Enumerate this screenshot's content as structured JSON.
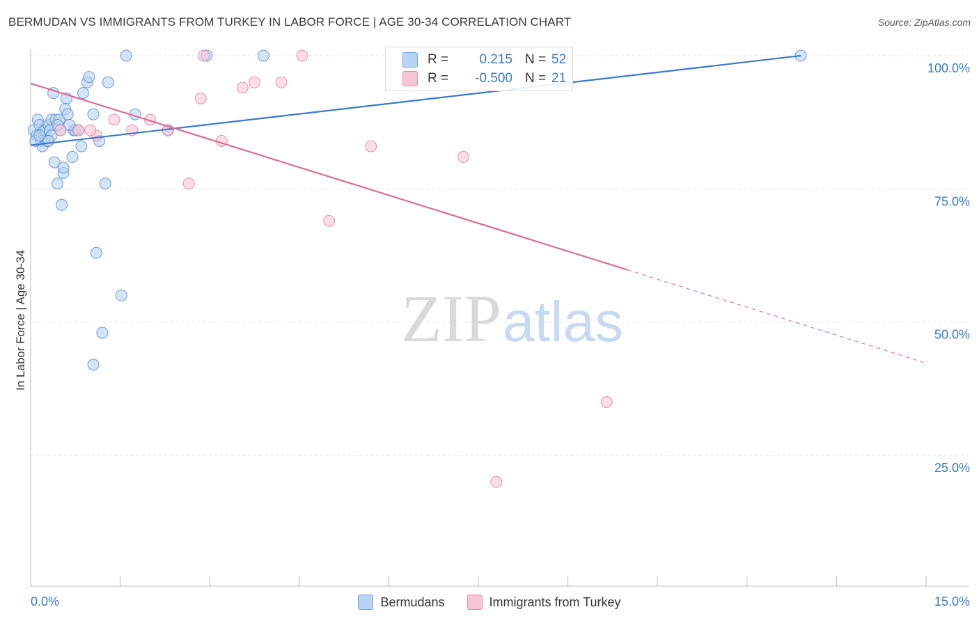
{
  "header": {
    "title": "BERMUDAN VS IMMIGRANTS FROM TURKEY IN LABOR FORCE | AGE 30-34 CORRELATION CHART",
    "source": "Source: ZipAtlas.com"
  },
  "watermark": {
    "zip": "ZIP",
    "atlas": "atlas"
  },
  "legend": {
    "r_label": "R =",
    "n_label": "N =",
    "rows": [
      {
        "r": "0.215",
        "n": "52",
        "color": "#6fa3e0",
        "fill": "#b8d3f3"
      },
      {
        "r": "-0.500",
        "n": "21",
        "color": "#e98aaa",
        "fill": "#f7c6d5"
      }
    ]
  },
  "chart_data": {
    "type": "scatter",
    "title": "BERMUDAN VS IMMIGRANTS FROM TURKEY IN LABOR FORCE | AGE 30-34 CORRELATION CHART",
    "xlabel": "",
    "ylabel": "In Labor Force | Age 30-34",
    "xlim": [
      0,
      15
    ],
    "ylim": [
      0,
      105
    ],
    "x_tick_labels": [
      "0.0%",
      "15.0%"
    ],
    "y_tick_labels": [
      "100.0%",
      "75.0%",
      "50.0%",
      "25.0%"
    ],
    "y_ticks": [
      100,
      75,
      50,
      25
    ],
    "series": [
      {
        "name": "Bermudans",
        "color": "#3a78c9",
        "fill": "#b8d3f3",
        "points": [
          [
            0.05,
            86
          ],
          [
            0.1,
            85
          ],
          [
            0.12,
            88
          ],
          [
            0.15,
            87
          ],
          [
            0.18,
            84
          ],
          [
            0.2,
            83
          ],
          [
            0.22,
            86
          ],
          [
            0.25,
            86
          ],
          [
            0.28,
            84
          ],
          [
            0.3,
            87
          ],
          [
            0.32,
            86
          ],
          [
            0.35,
            85
          ],
          [
            0.35,
            88
          ],
          [
            0.38,
            93
          ],
          [
            0.4,
            80
          ],
          [
            0.42,
            88
          ],
          [
            0.45,
            76
          ],
          [
            0.48,
            88
          ],
          [
            0.5,
            86
          ],
          [
            0.52,
            72
          ],
          [
            0.55,
            78
          ],
          [
            0.55,
            79
          ],
          [
            0.58,
            90
          ],
          [
            0.6,
            92
          ],
          [
            0.62,
            89
          ],
          [
            0.7,
            81
          ],
          [
            0.72,
            86
          ],
          [
            0.75,
            86
          ],
          [
            0.8,
            86
          ],
          [
            0.85,
            83
          ],
          [
            0.88,
            93
          ],
          [
            0.95,
            95
          ],
          [
            0.98,
            96
          ],
          [
            1.05,
            89
          ],
          [
            1.1,
            63
          ],
          [
            1.15,
            84
          ],
          [
            1.2,
            48
          ],
          [
            1.25,
            76
          ],
          [
            1.3,
            95
          ],
          [
            1.05,
            42
          ],
          [
            1.52,
            55
          ],
          [
            1.6,
            100
          ],
          [
            1.75,
            89
          ],
          [
            2.3,
            86
          ],
          [
            2.95,
            100
          ],
          [
            3.9,
            100
          ],
          [
            12.9,
            100
          ],
          [
            0.08,
            84
          ],
          [
            0.15,
            85
          ],
          [
            0.3,
            84
          ],
          [
            0.45,
            87
          ],
          [
            0.65,
            87
          ]
        ]
      },
      {
        "name": "Immigrants from Turkey",
        "color": "#e06a95",
        "fill": "#f7c6d5",
        "points": [
          [
            0.8,
            86
          ],
          [
            1.1,
            85
          ],
          [
            1.4,
            88
          ],
          [
            1.7,
            86
          ],
          [
            2.0,
            88
          ],
          [
            2.3,
            86
          ],
          [
            2.65,
            76
          ],
          [
            2.85,
            92
          ],
          [
            3.2,
            84
          ],
          [
            3.55,
            94
          ],
          [
            3.75,
            95
          ],
          [
            4.2,
            95
          ],
          [
            4.55,
            100
          ],
          [
            5.0,
            69
          ],
          [
            5.7,
            83
          ],
          [
            7.25,
            81
          ],
          [
            7.8,
            20
          ],
          [
            9.65,
            35
          ],
          [
            0.5,
            86
          ],
          [
            1.0,
            86
          ],
          [
            2.9,
            100
          ]
        ]
      }
    ],
    "trendlines": [
      {
        "series": "Bermudans",
        "x": [
          0,
          12.9
        ],
        "y": [
          83.2,
          100
        ],
        "style": "solid"
      },
      {
        "series": "Immigrants from Turkey",
        "x": [
          0,
          10.0
        ],
        "y": [
          94.8,
          59.8
        ],
        "style": "solid"
      },
      {
        "series": "Immigrants from Turkey",
        "x": [
          10.0,
          15.0
        ],
        "y": [
          59.8,
          42.3
        ],
        "style": "dashed"
      }
    ]
  },
  "bottom_legend": [
    {
      "label": "Bermudans",
      "color": "#6fa3e0",
      "fill": "#b8d3f3"
    },
    {
      "label": "Immigrants from Turkey",
      "color": "#e98aaa",
      "fill": "#f7c6d5"
    }
  ]
}
